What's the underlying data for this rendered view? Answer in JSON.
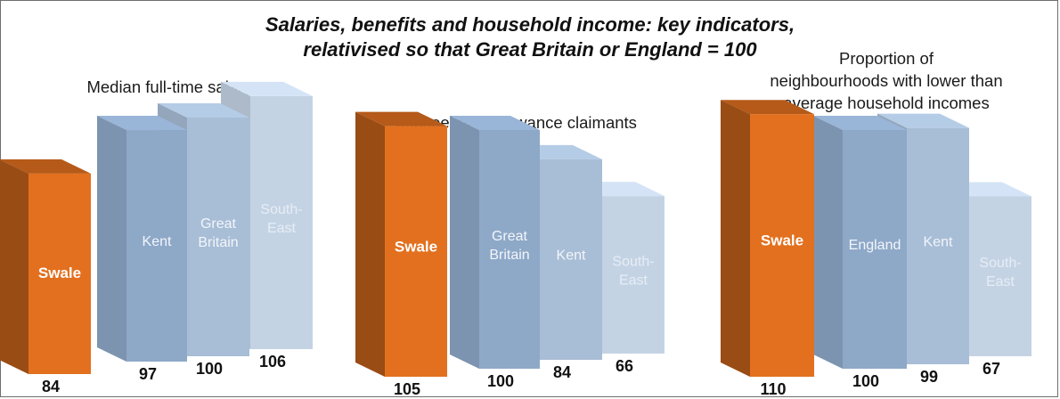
{
  "title": {
    "line1": "Salaries, benefits and household income: key indicators,",
    "line2": "relativised so that Great Britain or England = 100"
  },
  "colors": {
    "swale": "#e2701f",
    "blue1": "#8ea8c8",
    "blue2": "#a8bdd6",
    "blue3": "#c4d3e4",
    "value_label": "#111111"
  },
  "chart_data": [
    {
      "type": "bar",
      "title": "Median full-time salary",
      "categories": [
        "Swale",
        "Kent",
        "Great Britain",
        "South-East"
      ],
      "bar_labels": [
        "Swale",
        "Kent",
        "Great\nBritain",
        "South-\nEast"
      ],
      "values": [
        84,
        97,
        100,
        106
      ],
      "value_labels": [
        "84",
        "97",
        "100",
        "106"
      ],
      "colors": [
        "#e2701f",
        "#8ea8c8",
        "#a8bdd6",
        "#c4d3e4"
      ]
    },
    {
      "type": "bar",
      "title": "Jobseeker's Allowance claimants",
      "categories": [
        "Swale",
        "Great Britain",
        "Kent",
        "South-East"
      ],
      "bar_labels": [
        "Swale",
        "Great\nBritain",
        "Kent",
        "South-\nEast"
      ],
      "values": [
        105,
        100,
        84,
        66
      ],
      "value_labels": [
        "105",
        "100",
        "84",
        "66"
      ],
      "colors": [
        "#e2701f",
        "#8ea8c8",
        "#a8bdd6",
        "#c4d3e4"
      ]
    },
    {
      "type": "bar",
      "title": "Proportion of neighbourhoods with lower than average household incomes",
      "title_lines": [
        "Proportion of",
        "neighbourhoods with lower than",
        "average household incomes"
      ],
      "categories": [
        "Swale",
        "England",
        "Kent",
        "South-East"
      ],
      "bar_labels": [
        "Swale",
        "England",
        "Kent",
        "South-\nEast"
      ],
      "values": [
        110,
        100,
        99,
        67
      ],
      "value_labels": [
        "110",
        "100",
        "99",
        "67"
      ],
      "colors": [
        "#e2701f",
        "#8ea8c8",
        "#a8bdd6",
        "#c4d3e4"
      ]
    }
  ]
}
